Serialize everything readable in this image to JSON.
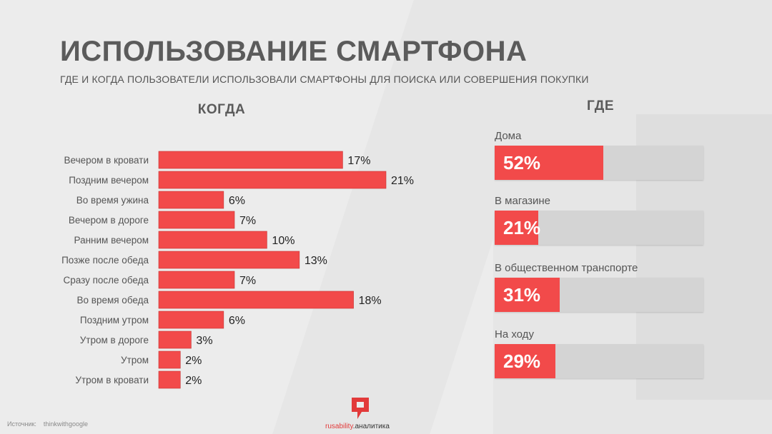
{
  "title": "ИСПОЛЬЗОВАНИЕ СМАРТФОНА",
  "subtitle": "ГДЕ И КОГДА ПОЛЬЗОВАТЕЛИ ИСПОЛЬЗОВАЛИ СМАРТФОНЫ ДЛЯ ПОИСКА ИЛИ СОВЕРШЕНИЯ ПОКУПКИ",
  "when_heading": "КОГДА",
  "where_heading": "ГДЕ",
  "colors": {
    "bar": "#f24a4a",
    "track": "#d4d4d4"
  },
  "chart_data": [
    {
      "type": "bar",
      "orientation": "horizontal",
      "title": "КОГДА",
      "categories": [
        "Вечером в кровати",
        "Поздним вечером",
        "Во время ужина",
        "Вечером в дороге",
        "Ранним вечером",
        "Позже после обеда",
        "Сразу после обеда",
        "Во время обеда",
        "Поздним утром",
        "Утром в дороге",
        "Утром",
        "Утром в кровати"
      ],
      "values": [
        17,
        21,
        6,
        7,
        10,
        13,
        7,
        18,
        6,
        3,
        2,
        2
      ],
      "value_labels": [
        "17%",
        "21%",
        "6%",
        "7%",
        "10%",
        "13%",
        "7%",
        "18%",
        "6%",
        "3%",
        "2%",
        "2%"
      ],
      "unit": "%",
      "xlim": [
        0,
        21
      ]
    },
    {
      "type": "bar",
      "orientation": "horizontal",
      "title": "ГДЕ",
      "categories": [
        "Дома",
        "В магазине",
        "В общественном транспорте",
        "На ходу"
      ],
      "values": [
        52,
        21,
        31,
        29
      ],
      "value_labels": [
        "52%",
        "21%",
        "31%",
        "29%"
      ],
      "unit": "%",
      "xlim": [
        0,
        100
      ]
    }
  ],
  "footer": {
    "source_label": "Источник:",
    "source_value": "thinkwithgoogle",
    "brand_name": "rusability",
    "brand_suffix": ".аналитика"
  }
}
